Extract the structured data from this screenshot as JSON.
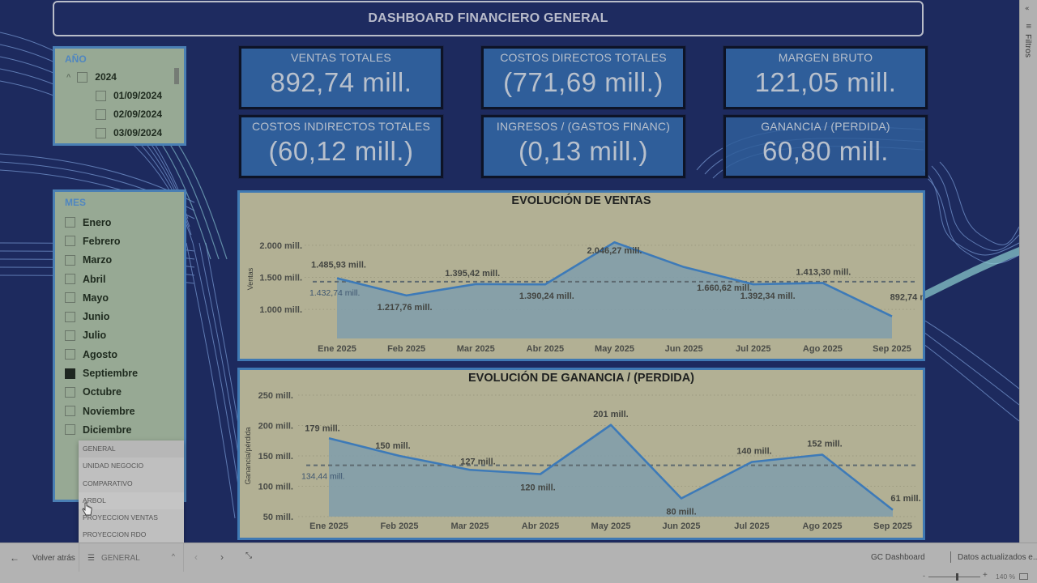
{
  "header": {
    "title": "DASHBOARD FINANCIERO GENERAL"
  },
  "filters_pane": {
    "label": "Filtros"
  },
  "slicer_year": {
    "header": "AÑO",
    "year": "2024",
    "dates": [
      "01/09/2024",
      "02/09/2024",
      "03/09/2024"
    ]
  },
  "slicer_month": {
    "header": "MES",
    "items": [
      {
        "label": "Enero",
        "checked": false
      },
      {
        "label": "Febrero",
        "checked": false
      },
      {
        "label": "Marzo",
        "checked": false
      },
      {
        "label": "Abril",
        "checked": false
      },
      {
        "label": "Mayo",
        "checked": false
      },
      {
        "label": "Junio",
        "checked": false
      },
      {
        "label": "Julio",
        "checked": false
      },
      {
        "label": "Agosto",
        "checked": false
      },
      {
        "label": "Septiembre",
        "checked": true
      },
      {
        "label": "Octubre",
        "checked": false
      },
      {
        "label": "Noviembre",
        "checked": false
      },
      {
        "label": "Diciembre",
        "checked": false
      }
    ]
  },
  "kpis": [
    {
      "label": "VENTAS TOTALES",
      "value": "892,74 mill."
    },
    {
      "label": "COSTOS DIRECTOS TOTALES",
      "value": "(771,69 mill.)"
    },
    {
      "label": "MARGEN BRUTO",
      "value": "121,05 mill."
    },
    {
      "label": "COSTOS INDIRECTOS TOTALES",
      "value": "(60,12 mill.)"
    },
    {
      "label": "INGRESOS / (GASTOS FINANC)",
      "value": "(0,13 mill.)"
    },
    {
      "label": "GANANCIA / (PERDIDA)",
      "value": "60,80 mill."
    }
  ],
  "page_menu": {
    "items": [
      "GENERAL",
      "UNIDAD NEGOCIO",
      "COMPARATIVO",
      "ARBOL",
      "PROYECCION VENTAS",
      "PROYECCION RDO"
    ]
  },
  "bottom_bar": {
    "back_label": "Volver atrás",
    "current_page": "GENERAL",
    "report_name": "GC Dashboard",
    "updated_label": "Datos actualizados e...",
    "zoom": "140 %"
  },
  "colors": {
    "canvas_bg": "#1d2a5e",
    "kpi_bg": "#2f5e9a",
    "slicer_bg": "#97a994",
    "chart_bg": "#b2b094",
    "line": "#3d7ab8",
    "area": "#7f9dab"
  },
  "chart_data": [
    {
      "type": "area",
      "title": "EVOLUCIÓN DE VENTAS",
      "xlabel": "",
      "ylabel": "Ventas",
      "categories": [
        "Ene 2025",
        "Feb 2025",
        "Mar 2025",
        "Abr 2025",
        "May 2025",
        "Jun 2025",
        "Jul 2025",
        "Ago 2025",
        "Sep 2025"
      ],
      "values": [
        1485.93,
        1217.76,
        1395.42,
        1390.24,
        2046.27,
        1660.62,
        1392.34,
        1413.3,
        892.74
      ],
      "value_labels": [
        "1.485,93 mill.",
        "1.217,76 mill.",
        "1.395,42 mill.",
        "1.390,24 mill.",
        "2.046,27 mill.",
        "1.660,62 mill.",
        "1.392,34 mill.",
        "1.413,30 mill.",
        "892,74 mill."
      ],
      "average_line": {
        "value": 1432.74,
        "label": "1.432,74 mill."
      },
      "yticks": [
        1000,
        1500,
        2000
      ],
      "ytick_labels": [
        "1.000 mill.",
        "1.500 mill.",
        "2.000 mill."
      ],
      "ylim": [
        800,
        2150
      ],
      "units": "mill.",
      "grid": true
    },
    {
      "type": "area",
      "title": "EVOLUCIÓN DE GANANCIA / (PERDIDA)",
      "xlabel": "",
      "ylabel": "Ganancia/pérdida",
      "categories": [
        "Ene 2025",
        "Feb 2025",
        "Mar 2025",
        "Abr 2025",
        "May 2025",
        "Jun 2025",
        "Jul 2025",
        "Ago 2025",
        "Sep 2025"
      ],
      "values": [
        179,
        150,
        127,
        120,
        201,
        80,
        140,
        152,
        61
      ],
      "value_labels": [
        "179 mill.",
        "150 mill.",
        "127 mill.",
        "120 mill.",
        "201 mill.",
        "80 mill.",
        "140 mill.",
        "152 mill.",
        "61 mill."
      ],
      "average_line": {
        "value": 134.44,
        "label": "134,44 mill."
      },
      "yticks": [
        50,
        100,
        150,
        200,
        250
      ],
      "ytick_labels": [
        "50 mill.",
        "100 mill.",
        "150 mill.",
        "200 mill.",
        "250 mill."
      ],
      "ylim": [
        50,
        250
      ],
      "units": "mill.",
      "grid": true
    }
  ]
}
